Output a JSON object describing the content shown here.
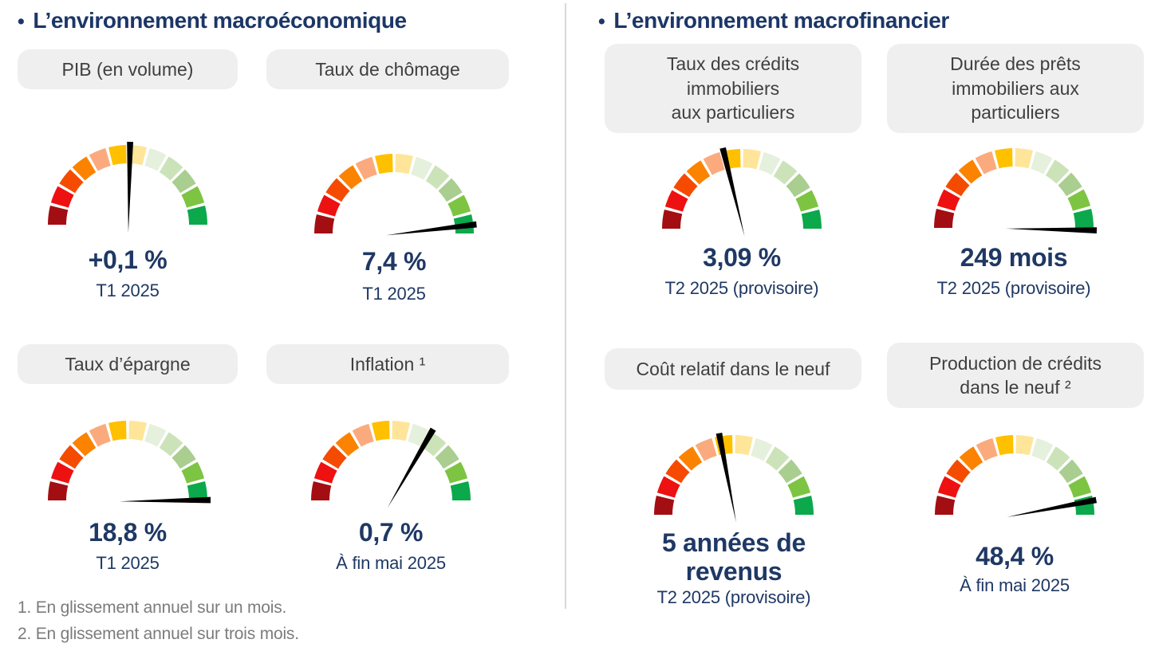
{
  "left_section": {
    "bullet": "•",
    "title": "L’environnement macroéconomique",
    "footnotes": [
      "1. En glissement annuel sur un mois.",
      "2. En glissement annuel sur trois mois."
    ]
  },
  "right_section": {
    "bullet": "•",
    "title": "L’environnement macrofinancier"
  },
  "gauge_scale": {
    "segments": 12,
    "arc_degrees": 180,
    "angle_convention": "degrees: 0 = right (best/green), 90 = up, 180 = left (worst/dark red)",
    "palette": [
      "#A30E13",
      "#EE1111",
      "#F54B00",
      "#FB8300",
      "#FBAA7E",
      "#FFC000",
      "#FEE599",
      "#E5F0DD",
      "#CCE3BA",
      "#A9CE90",
      "#7DC443",
      "#0CA84C"
    ]
  },
  "chart_data": [
    {
      "id": "pib",
      "type": "gauge",
      "section": "macroeconomique",
      "label": "PIB (en volume)",
      "value": "+0,1 %",
      "period": "T1 2025",
      "needle_angle_deg": 88
    },
    {
      "id": "chomage",
      "type": "gauge",
      "section": "macroeconomique",
      "label": "Taux de chômage",
      "value": "7,4 %",
      "period": "T1 2025",
      "needle_angle_deg": 6
    },
    {
      "id": "epargne",
      "type": "gauge",
      "section": "macroeconomique",
      "label": "Taux d’épargne",
      "value": "18,8 %",
      "period": "T1 2025",
      "needle_angle_deg": 0
    },
    {
      "id": "inflation",
      "type": "gauge",
      "section": "macroeconomique",
      "label": "Inflation ¹",
      "value": "0,7 %",
      "period": "À fin mai 2025",
      "needle_angle_deg": 59
    },
    {
      "id": "taux-credits",
      "type": "gauge",
      "section": "macrofinancier",
      "label": "Taux des crédits\nimmobiliers\naux particuliers",
      "value": "3,09 %",
      "period": "T2 2025 (provisoire)",
      "needle_angle_deg": 103
    },
    {
      "id": "duree-prets",
      "type": "gauge",
      "section": "macrofinancier",
      "label": "Durée des prêts\nimmobiliers aux\nparticuliers",
      "value": "249 mois",
      "period": "T2 2025 (provisoire)",
      "needle_angle_deg": -2
    },
    {
      "id": "cout-relatif",
      "type": "gauge",
      "section": "macrofinancier",
      "label": "Coût relatif dans le neuf",
      "value": "5 années de\nrevenus",
      "period": "T2 2025 (provisoire)",
      "needle_angle_deg": 100
    },
    {
      "id": "production-credits",
      "type": "gauge",
      "section": "macrofinancier",
      "label": "Production de crédits\ndans le neuf ²",
      "value": "48,4 %",
      "period": "À fin mai 2025",
      "needle_angle_deg": 10
    }
  ],
  "colors": {
    "title_navy": "#1C3667",
    "value_navy": "#1F3864",
    "pill_bg": "#EFEFEF",
    "pill_text": "#3F3F3F",
    "footnote_gray": "#7C7C7C",
    "divider": "#D9D9D9",
    "needle": "#000000"
  }
}
